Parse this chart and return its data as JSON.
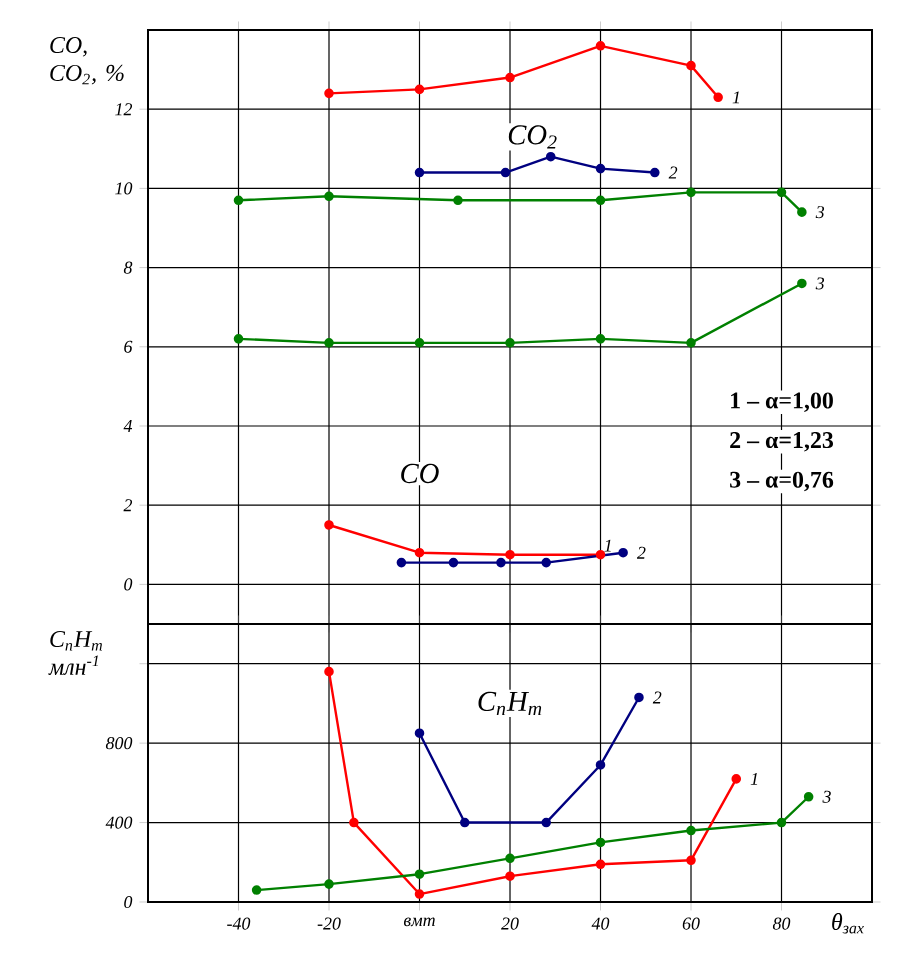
{
  "chart_data": [
    {
      "type": "line",
      "ylabel": "CO, CO$_{2}$, %",
      "xlim": [
        -60,
        100
      ],
      "ylim": [
        -1,
        14
      ],
      "tick_labels": "y",
      "grid": true,
      "marker": "circle",
      "line_style": "solid",
      "xticks": [
        {
          "value": -40,
          "label": null
        },
        {
          "value": -20,
          "label": null
        },
        {
          "value": 0,
          "label": null
        },
        {
          "value": 20,
          "label": null
        },
        {
          "value": 40,
          "label": null
        },
        {
          "value": 60,
          "label": null
        },
        {
          "value": 80,
          "label": null
        }
      ],
      "yticks": [
        0,
        2,
        4,
        6,
        8,
        10,
        12
      ],
      "annotations": [
        "CO$_{2}$",
        "CO",
        "1 – α=1,00",
        "2 – α=1,23",
        "3 – α=0,76"
      ],
      "series": [
        {
          "name": "1",
          "color": "#ff0000",
          "x": [
            -20,
            0,
            20,
            40,
            60,
            66
          ],
          "values": [
            12.4,
            12.5,
            12.8,
            13.6,
            13.1,
            12.3
          ]
        },
        {
          "name": "2",
          "color": "#000080",
          "x": [
            0,
            19,
            29,
            40,
            52
          ],
          "values": [
            10.4,
            10.4,
            10.8,
            10.5,
            10.4
          ]
        },
        {
          "name": "3",
          "color": "#008000",
          "x": [
            -40,
            -20,
            8.5,
            40,
            60,
            80,
            84.5
          ],
          "values": [
            9.7,
            9.8,
            9.7,
            9.7,
            9.9,
            9.9,
            9.4
          ]
        },
        {
          "name": "3",
          "color": "#008000",
          "x": [
            -40,
            -20,
            0,
            20,
            40,
            60,
            84.5
          ],
          "values": [
            6.2,
            6.1,
            6.1,
            6.1,
            6.2,
            6.1,
            7.6
          ]
        },
        {
          "name": "1",
          "color": "#ff0000",
          "x": [
            -20,
            0,
            20,
            40
          ],
          "values": [
            1.5,
            0.8,
            0.75,
            0.75
          ]
        },
        {
          "name": "2",
          "color": "#000080",
          "x": [
            -4,
            7.5,
            18,
            28,
            45
          ],
          "values": [
            0.55,
            0.55,
            0.55,
            0.55,
            0.8
          ]
        }
      ]
    },
    {
      "type": "line",
      "ylabel": "C$_{n}$H$_{m}$ млн$^{-1}$",
      "xlabel": "θ$_{зах}$",
      "xlim": [
        -60,
        100
      ],
      "ylim": [
        0,
        1400
      ],
      "grid": true,
      "marker": "circle",
      "line_style": "solid",
      "xticks": [
        -40,
        -20,
        {
          "value": 0,
          "label": "вмт"
        },
        20,
        40,
        60,
        80
      ],
      "yticks": [
        0,
        400,
        800,
        {
          "value": 1200,
          "label": null
        }
      ],
      "annotations": [
        "C$_{n}$H$_{m}$"
      ],
      "series": [
        {
          "name": "1",
          "color": "#ff0000",
          "x": [
            -20,
            -14.5,
            0,
            20,
            40,
            60,
            70
          ],
          "values": [
            1160,
            400,
            40,
            130,
            190,
            210,
            620
          ]
        },
        {
          "name": "2",
          "color": "#000080",
          "x": [
            0,
            10,
            28,
            40,
            48.5
          ],
          "values": [
            850,
            400,
            400,
            690,
            1030
          ]
        },
        {
          "name": "3",
          "color": "#008000",
          "x": [
            -36,
            -20,
            0,
            20,
            40,
            60,
            80,
            86
          ],
          "values": [
            60,
            90,
            140,
            220,
            300,
            360,
            400,
            530
          ]
        }
      ]
    }
  ]
}
